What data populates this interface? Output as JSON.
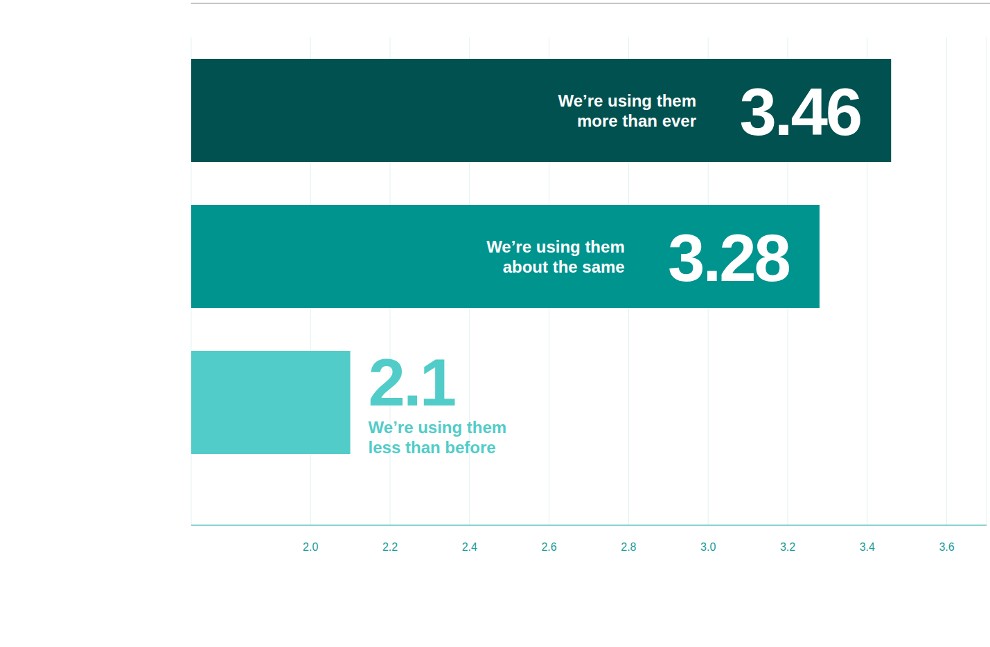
{
  "chart_data": {
    "type": "bar",
    "orientation": "horizontal",
    "categories": [
      "We’re using them more than ever",
      "We’re using them about the same",
      "We’re using them less than before"
    ],
    "values": [
      3.46,
      3.28,
      2.1
    ],
    "colors": [
      "#00514f",
      "#00948f",
      "#52ccc8"
    ],
    "xlim": [
      1.7,
      3.7
    ],
    "xticks": [
      {
        "value": 2,
        "label": "2.0"
      },
      2.2,
      2.4,
      2.6,
      2.8,
      {
        "value": 3,
        "label": "3.0"
      },
      3.2,
      3.4,
      3.6
    ],
    "grid": true,
    "data_labels": true,
    "tick_labels": "x"
  }
}
